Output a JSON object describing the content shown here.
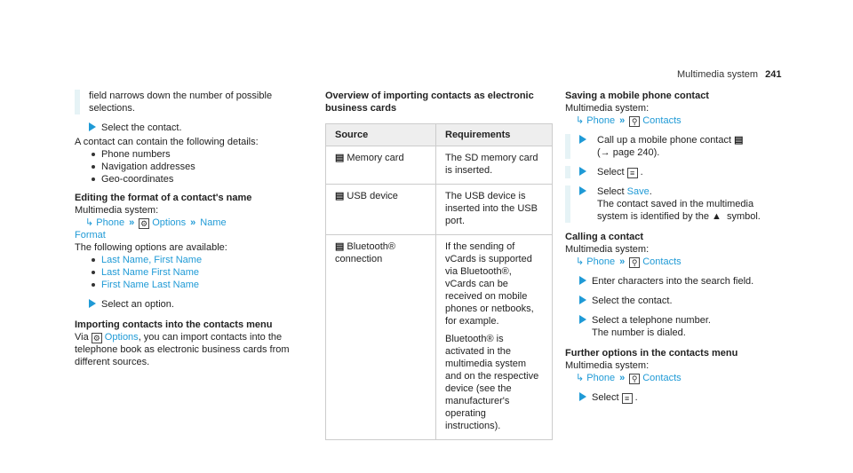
{
  "header": {
    "title": "Multimedia system",
    "page_number": "241"
  },
  "col1": {
    "intro": "field narrows down the number of possible selections.",
    "step1": "Select the contact.",
    "details_lead": "A contact can contain the following details:",
    "details": [
      "Phone numbers",
      "Navigation addresses",
      "Geo-coordinates"
    ],
    "editing_heading": "Editing the format of a contact's name",
    "mm_label": "Multimedia system:",
    "path": [
      "Phone",
      "Options",
      "Name",
      "Format"
    ],
    "options_lead": "The following options are available:",
    "options": [
      "Last Name, First Name",
      "Last Name First Name",
      "First Name Last Name"
    ],
    "step2": "Select an option.",
    "import_heading": "Importing contacts into the contacts menu",
    "import_text_pre": "Via",
    "import_link": "Options",
    "import_text_post": ", you can import contacts into the telephone book as electronic business cards from different sources."
  },
  "col2": {
    "heading": "Overview of importing contacts as electronic business cards",
    "table_headers": [
      "Source",
      "Requirements"
    ],
    "rows": [
      {
        "source": "Memory card",
        "req": "The SD memory card is inserted."
      },
      {
        "source": "USB device",
        "req": "The USB device is inserted into the USB port."
      },
      {
        "source": "Bluetooth® connection",
        "req": "If the sending of vCards is supported via Bluetooth®, vCards can be received on mobile phones or netbooks, for example.",
        "req2": "Bluetooth® is activated in the multimedia system and on the respective device (see the manufacturer's operating instructions)."
      }
    ]
  },
  "col3": {
    "save_heading": "Saving a mobile phone contact",
    "mm_label": "Multimedia system:",
    "path": [
      "Phone",
      "Contacts"
    ],
    "s1": "Call up a mobile phone contact",
    "s1b": "(→ page 240).",
    "s2": "Select",
    "s3_pre": "Select",
    "s3_link": "Save",
    "s3_post": "The contact saved in the multimedia system is identified by the",
    "s3_end": "symbol.",
    "call_heading": "Calling a contact",
    "c1": "Enter characters into the search field.",
    "c2": "Select the contact.",
    "c3": "Select a telephone number.",
    "c3b": "The number is dialed.",
    "further_heading": "Further options in the contacts menu",
    "f1": "Select"
  }
}
